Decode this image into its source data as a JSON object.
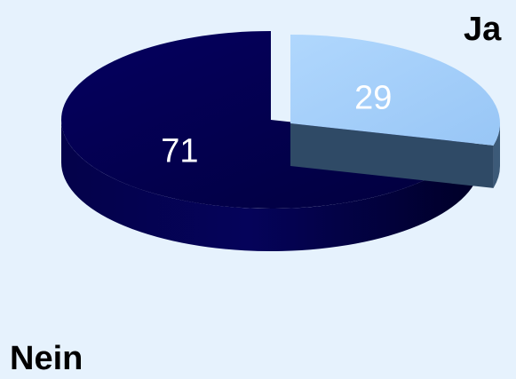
{
  "chart_data": {
    "type": "pie",
    "style": "3d-exploded",
    "categories": [
      "Ja",
      "Nein"
    ],
    "values": [
      29,
      71
    ],
    "data_labels": [
      "29",
      "71"
    ],
    "colors": {
      "Ja": "#a9d2fb",
      "Nein": "#02004e",
      "background": "#e6f2fd",
      "data_label_text": "#ffffff"
    }
  }
}
